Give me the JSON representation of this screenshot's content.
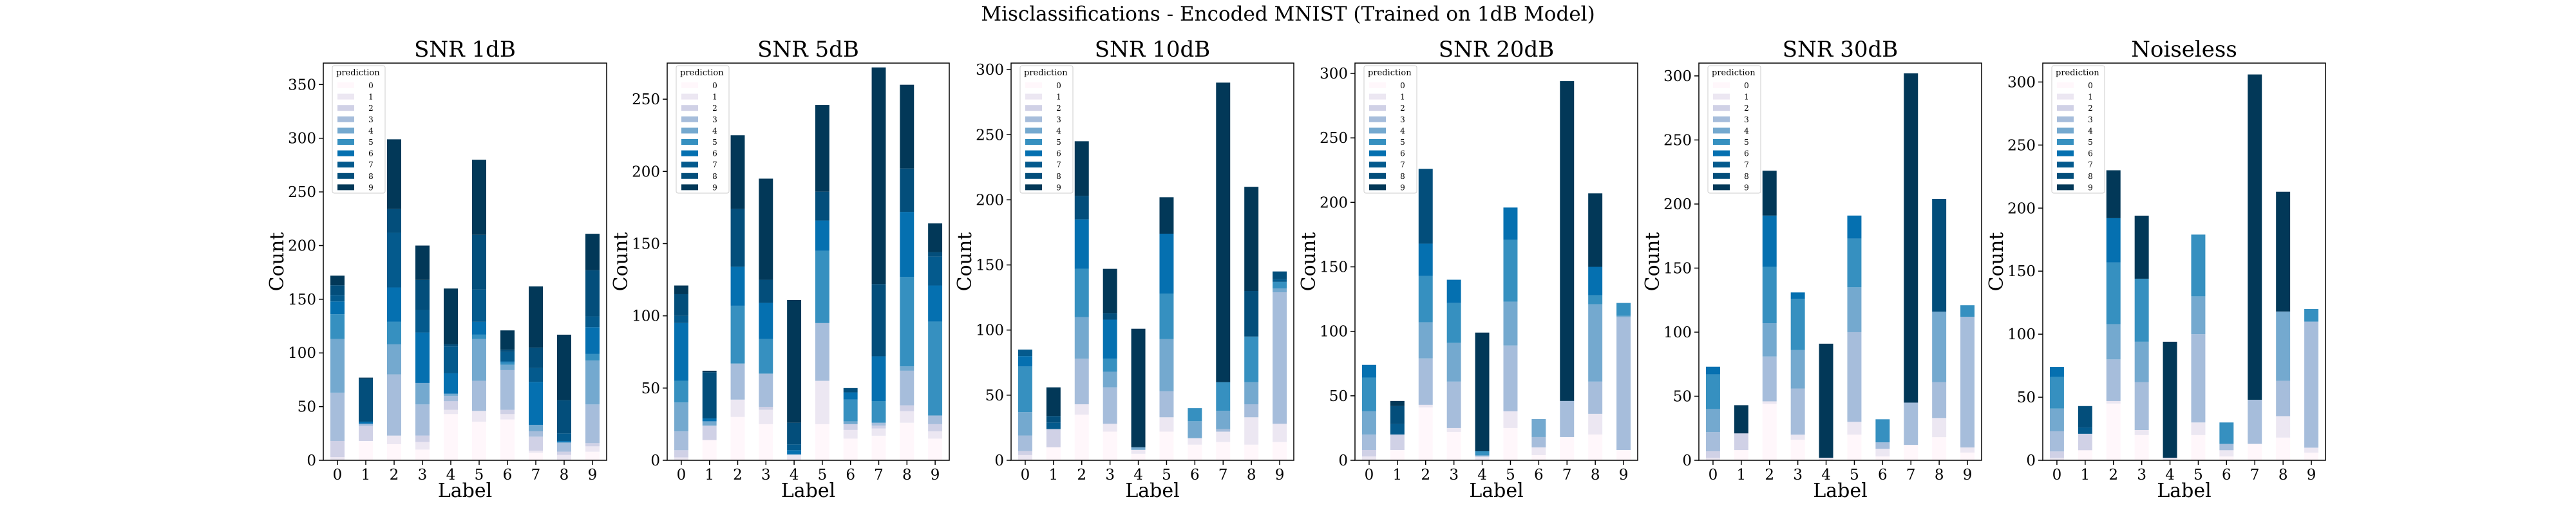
{
  "figure_title": "Misclassifications - Encoded MNIST (Trained on 1dB Model)",
  "legend": {
    "title": "prediction",
    "labels": [
      "0",
      "1",
      "2",
      "3",
      "4",
      "5",
      "6",
      "7",
      "8",
      "9"
    ]
  },
  "colors": [
    "#fff7fb",
    "#ece7f2",
    "#d0d1e6",
    "#a6bddb",
    "#74a9cf",
    "#3690c0",
    "#0570b0",
    "#045a8d",
    "#034e7b",
    "#023858"
  ],
  "chart_data": [
    {
      "type": "bar",
      "stacked": true,
      "title": "SNR 1dB",
      "xlabel": "Label",
      "ylabel": "Count",
      "categories": [
        "0",
        "1",
        "2",
        "3",
        "4",
        "5",
        "6",
        "7",
        "8",
        "9"
      ],
      "ylim": [
        0,
        370
      ],
      "yticks": [
        0,
        50,
        100,
        150,
        200,
        250,
        300,
        350
      ],
      "stacks": [
        [
          0,
          18,
          15,
          10,
          43,
          36,
          38,
          7,
          0,
          8
        ],
        [
          3,
          0,
          8,
          7,
          4,
          10,
          5,
          2,
          5,
          5
        ],
        [
          15,
          14,
          0,
          6,
          8,
          0,
          4,
          13,
          3,
          3
        ],
        [
          45,
          2,
          57,
          29,
          5,
          28,
          37,
          5,
          8,
          36
        ],
        [
          50,
          0,
          28,
          20,
          2,
          39,
          5,
          6,
          1,
          41
        ],
        [
          23,
          0,
          21,
          0,
          0,
          4,
          2,
          0,
          0,
          6
        ],
        [
          12,
          2,
          32,
          47,
          19,
          12,
          1,
          40,
          1,
          25
        ],
        [
          6,
          0,
          51,
          21,
          25,
          30,
          9,
          13,
          7,
          10
        ],
        [
          9,
          40,
          22,
          28,
          2,
          51,
          2,
          19,
          31,
          43
        ],
        [
          9,
          1,
          65,
          32,
          52,
          70,
          18,
          57,
          61,
          34
        ]
      ]
    },
    {
      "type": "bar",
      "stacked": true,
      "title": "SNR 5dB",
      "xlabel": "Label",
      "ylabel": "Count",
      "categories": [
        "0",
        "1",
        "2",
        "3",
        "4",
        "5",
        "6",
        "7",
        "8",
        "9"
      ],
      "ylim": [
        0,
        275
      ],
      "yticks": [
        0,
        50,
        100,
        150,
        200,
        250
      ],
      "stacks": [
        [
          0,
          14,
          30,
          25,
          0,
          25,
          15,
          17,
          26,
          15
        ],
        [
          2,
          0,
          12,
          10,
          4,
          30,
          6,
          5,
          8,
          5
        ],
        [
          5,
          10,
          0,
          2,
          0,
          0,
          4,
          2,
          4,
          5
        ],
        [
          13,
          0,
          25,
          23,
          0,
          40,
          0,
          2,
          24,
          6
        ],
        [
          20,
          3,
          0,
          0,
          0,
          0,
          2,
          0,
          3,
          0
        ],
        [
          15,
          0,
          40,
          24,
          0,
          50,
          15,
          15,
          62,
          65
        ],
        [
          40,
          2,
          27,
          25,
          3,
          21,
          5,
          31,
          45,
          25
        ],
        [
          5,
          0,
          0,
          0,
          4,
          0,
          0,
          0,
          0,
          20
        ],
        [
          15,
          32,
          40,
          16,
          15,
          20,
          3,
          50,
          30,
          3
        ],
        [
          6,
          1,
          51,
          70,
          85,
          60,
          0,
          150,
          58,
          20
        ]
      ]
    },
    {
      "type": "bar",
      "stacked": true,
      "title": "SNR 10dB",
      "xlabel": "Label",
      "ylabel": "Count",
      "categories": [
        "0",
        "1",
        "2",
        "3",
        "4",
        "5",
        "6",
        "7",
        "8",
        "9"
      ],
      "ylim": [
        0,
        305
      ],
      "yticks": [
        0,
        50,
        100,
        150,
        200,
        250,
        300
      ],
      "stacks": [
        [
          0,
          10,
          35,
          22,
          5,
          22,
          12,
          14,
          12,
          14
        ],
        [
          4,
          0,
          8,
          6,
          3,
          11,
          5,
          8,
          21,
          14
        ],
        [
          3,
          14,
          0,
          0,
          0,
          0,
          0,
          0,
          0,
          0
        ],
        [
          12,
          0,
          35,
          28,
          0,
          20,
          0,
          2,
          10,
          101
        ],
        [
          18,
          0,
          32,
          12,
          2,
          40,
          13,
          14,
          17,
          3
        ],
        [
          35,
          0,
          37,
          10,
          0,
          35,
          10,
          22,
          35,
          5
        ],
        [
          8,
          0,
          38,
          30,
          0,
          46,
          0,
          0,
          0,
          0
        ],
        [
          5,
          5,
          0,
          0,
          0,
          0,
          0,
          0,
          0,
          2
        ],
        [
          0,
          5,
          18,
          5,
          0,
          0,
          0,
          0,
          35,
          6
        ],
        [
          0,
          22,
          42,
          34,
          91,
          28,
          0,
          230,
          80,
          0
        ]
      ]
    },
    {
      "type": "bar",
      "stacked": true,
      "title": "SNR 20dB",
      "xlabel": "Label",
      "ylabel": "Count",
      "categories": [
        "0",
        "1",
        "2",
        "3",
        "4",
        "5",
        "6",
        "7",
        "8",
        "9"
      ],
      "ylim": [
        0,
        308
      ],
      "yticks": [
        0,
        50,
        100,
        150,
        200,
        250,
        300
      ],
      "stacks": [
        [
          0,
          8,
          41,
          22,
          0,
          25,
          4,
          18,
          20,
          8
        ],
        [
          3,
          0,
          2,
          3,
          3,
          13,
          6,
          0,
          16,
          0
        ],
        [
          5,
          12,
          0,
          0,
          0,
          0,
          0,
          0,
          0,
          0
        ],
        [
          12,
          0,
          36,
          36,
          0,
          51,
          8,
          28,
          25,
          103
        ],
        [
          18,
          0,
          28,
          30,
          1,
          34,
          14,
          0,
          60,
          1
        ],
        [
          26,
          0,
          36,
          31,
          3,
          48,
          0,
          0,
          7,
          10
        ],
        [
          10,
          0,
          25,
          18,
          0,
          25,
          0,
          0,
          22,
          0
        ],
        [
          0,
          8,
          0,
          0,
          0,
          0,
          0,
          0,
          0,
          0
        ],
        [
          0,
          14,
          58,
          0,
          0,
          0,
          0,
          0,
          0,
          0
        ],
        [
          0,
          4,
          0,
          0,
          92,
          0,
          0,
          248,
          57,
          0
        ]
      ]
    },
    {
      "type": "bar",
      "stacked": true,
      "title": "SNR 30dB",
      "xlabel": "Label",
      "ylabel": "Count",
      "categories": [
        "0",
        "1",
        "2",
        "3",
        "4",
        "5",
        "6",
        "7",
        "8",
        "9"
      ],
      "ylim": [
        0,
        310
      ],
      "yticks": [
        0,
        50,
        100,
        150,
        200,
        250,
        300
      ],
      "stacks": [
        [
          0,
          8,
          44,
          16,
          0,
          20,
          3,
          12,
          18,
          6
        ],
        [
          2,
          0,
          2,
          4,
          2,
          10,
          6,
          0,
          15,
          4
        ],
        [
          5,
          13,
          0,
          0,
          0,
          0,
          0,
          0,
          0,
          0
        ],
        [
          15,
          0,
          35,
          36,
          0,
          70,
          5,
          33,
          28,
          102
        ],
        [
          18,
          0,
          26,
          30,
          0,
          35,
          0,
          0,
          55,
          0
        ],
        [
          27,
          0,
          44,
          40,
          0,
          38,
          18,
          0,
          0,
          9
        ],
        [
          6,
          0,
          40,
          5,
          0,
          18,
          0,
          0,
          0,
          0
        ],
        [
          0,
          0,
          0,
          0,
          0,
          0,
          0,
          0,
          0,
          0
        ],
        [
          0,
          0,
          0,
          0,
          0,
          0,
          0,
          0,
          88,
          0
        ],
        [
          0,
          22,
          35,
          0,
          89,
          0,
          0,
          257,
          0,
          0
        ]
      ]
    },
    {
      "type": "bar",
      "stacked": true,
      "title": "Noiseless",
      "xlabel": "Label",
      "ylabel": "Count",
      "categories": [
        "0",
        "1",
        "2",
        "3",
        "4",
        "5",
        "6",
        "7",
        "8",
        "9"
      ],
      "ylim": [
        0,
        315
      ],
      "yticks": [
        0,
        50,
        100,
        150,
        200,
        250,
        300
      ],
      "stacks": [
        [
          0,
          8,
          45,
          20,
          0,
          20,
          3,
          13,
          18,
          6
        ],
        [
          2,
          0,
          2,
          4,
          2,
          10,
          5,
          0,
          17,
          4
        ],
        [
          5,
          13,
          0,
          0,
          0,
          0,
          0,
          0,
          0,
          0
        ],
        [
          16,
          0,
          33,
          38,
          0,
          70,
          5,
          35,
          28,
          100
        ],
        [
          18,
          0,
          28,
          32,
          0,
          30,
          0,
          0,
          55,
          0
        ],
        [
          25,
          0,
          49,
          50,
          0,
          49,
          17,
          0,
          0,
          10
        ],
        [
          8,
          0,
          35,
          0,
          0,
          0,
          0,
          0,
          0,
          0
        ],
        [
          0,
          5,
          0,
          0,
          0,
          0,
          0,
          0,
          0,
          0
        ],
        [
          0,
          17,
          0,
          0,
          0,
          0,
          0,
          0,
          0,
          0
        ],
        [
          0,
          0,
          38,
          50,
          92,
          0,
          0,
          258,
          95,
          0
        ]
      ]
    }
  ]
}
